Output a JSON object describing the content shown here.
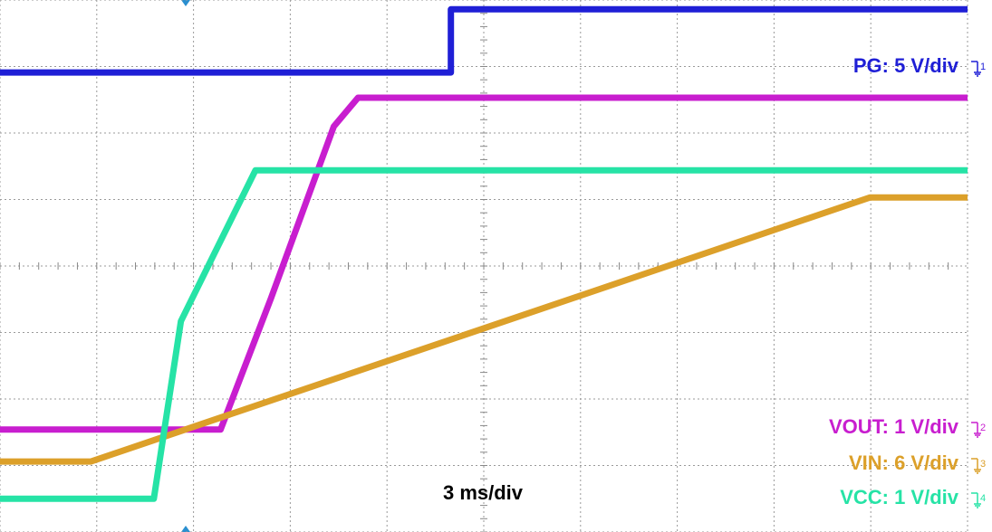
{
  "chart_data": {
    "type": "line",
    "annotation": "3 ms/div",
    "xlim": [
      0,
      10
    ],
    "ylim": [
      0,
      8
    ],
    "xticks": [
      0,
      1,
      2,
      3,
      4,
      5,
      6,
      7,
      8,
      9,
      10
    ],
    "yticks": [
      0,
      1,
      2,
      3,
      4,
      5,
      6,
      7,
      8
    ],
    "grid": true,
    "series": [
      {
        "name": "PG: 5 V/div",
        "channel": "1",
        "color": "#1f1fd6",
        "x": [
          0,
          4.66,
          4.66,
          10
        ],
        "values": [
          6.91,
          6.91,
          7.86,
          7.86
        ]
      },
      {
        "name": "VOUT: 1 V/div",
        "channel": "2",
        "color": "#c81ecf",
        "x": [
          0,
          2.28,
          2.8,
          3.45,
          3.7,
          10
        ],
        "values": [
          1.54,
          1.54,
          3.51,
          6.1,
          6.53,
          6.53
        ]
      },
      {
        "name": "VIN: 6 V/div",
        "channel": "3",
        "color": "#dca02a",
        "x": [
          0,
          0.94,
          8.99,
          10
        ],
        "values": [
          1.06,
          1.06,
          5.03,
          5.03
        ]
      },
      {
        "name": "VCC: 1 V/div",
        "channel": "4",
        "color": "#26e3a6",
        "x": [
          0,
          1.59,
          1.87,
          2.64,
          10
        ],
        "values": [
          0.5,
          0.5,
          3.17,
          5.44,
          5.44
        ]
      }
    ]
  }
}
